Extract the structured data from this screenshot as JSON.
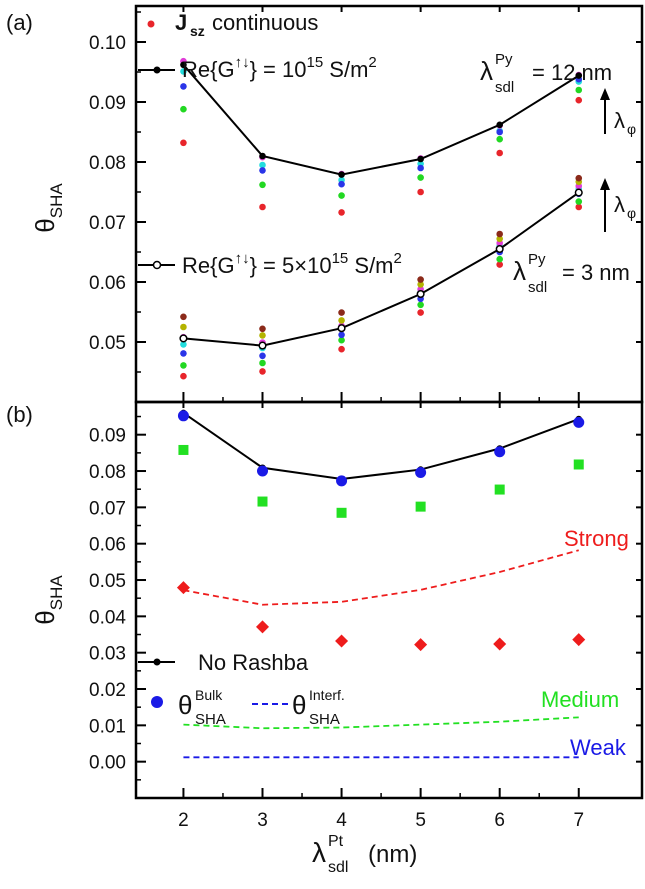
{
  "chart_data": [
    {
      "panel_label": "(a)",
      "type": "scatter",
      "ylabel": {
        "main": "θ",
        "sub": "SHA"
      },
      "xlim": [
        1.4,
        7.8
      ],
      "ylim": [
        0.04,
        0.106
      ],
      "yticks": [
        {
          "v": 0.05,
          "label": "0.05"
        },
        {
          "v": 0.06,
          "label": "0.06"
        },
        {
          "v": 0.07,
          "label": "0.07"
        },
        {
          "v": 0.08,
          "label": "0.08"
        },
        {
          "v": 0.09,
          "label": "0.09"
        },
        {
          "v": 0.1,
          "label": "0.10"
        }
      ],
      "x": [
        2,
        3,
        4,
        5,
        6,
        7
      ],
      "lines": [
        {
          "values": [
            0.0962,
            0.081,
            0.0779,
            0.0805,
            0.0862,
            0.0944
          ],
          "marker": "filled"
        },
        {
          "values": [
            0.0506,
            0.0494,
            0.0523,
            0.058,
            0.0655,
            0.0749
          ],
          "marker": "open"
        }
      ],
      "dot_groups": [
        {
          "color": "#e8252b",
          "values": [
            0.0832,
            0.0725,
            0.0716,
            0.075,
            0.0815,
            0.0903
          ]
        },
        {
          "color": "#22d822",
          "values": [
            0.0888,
            0.0762,
            0.0744,
            0.0774,
            0.0838,
            0.092
          ]
        },
        {
          "color": "#22dddd",
          "values": [
            0.0951,
            0.0795,
            0.077,
            0.0797,
            0.0852,
            0.0934
          ]
        },
        {
          "color": "#2a35e8",
          "values": [
            0.0926,
            0.0786,
            0.0763,
            0.079,
            0.085,
            0.0938
          ]
        },
        {
          "color": "#e03cd8",
          "values": [
            0.0968,
            0.0808,
            0.078,
            0.0806,
            0.0861,
            0.0945
          ]
        },
        {
          "color": "#e8252b",
          "values": [
            0.0443,
            0.0451,
            0.0488,
            0.0549,
            0.0629,
            0.0725
          ]
        },
        {
          "color": "#22d822",
          "values": [
            0.0461,
            0.0465,
            0.0503,
            0.0562,
            0.0638,
            0.0734
          ]
        },
        {
          "color": "#22dddd",
          "values": [
            0.0496,
            0.049,
            0.0522,
            0.0583,
            0.066,
            0.0755
          ]
        },
        {
          "color": "#2a35e8",
          "values": [
            0.0481,
            0.0477,
            0.0512,
            0.0572,
            0.065,
            0.0747
          ]
        },
        {
          "color": "#e03cd8",
          "values": [
            0.0508,
            0.0499,
            0.0527,
            0.0588,
            0.0665,
            0.076
          ]
        },
        {
          "color": "#b3b300",
          "values": [
            0.0525,
            0.0511,
            0.0536,
            0.0596,
            0.0672,
            0.0767
          ]
        },
        {
          "color": "#8b2a1a",
          "values": [
            0.0542,
            0.0522,
            0.0549,
            0.0604,
            0.068,
            0.0773
          ]
        }
      ],
      "annotations": {
        "legend_dots_text": "continuous",
        "legend_dots_J": "J",
        "legend_dots_J_sub": "sz",
        "legend_line1_text": "Re{G",
        "legend_line1_sup": "↑↓",
        "legend_line1_tail": "} = 10",
        "legend_line1_exp": "15",
        "legend_line1_unit": "S/m",
        "legend_line1_unit_exp": "2",
        "legend_line2_text": "Re{G",
        "legend_line2_sup": "↑↓",
        "legend_line2_tail": "} = 5×10",
        "legend_line2_exp": "15",
        "legend_line2_unit": "S/m",
        "legend_line2_unit_exp": "2",
        "lambda_py_top_sym": "λ",
        "lambda_py_top_sup": "Py",
        "lambda_py_top_sub": "sdl",
        "lambda_py_top_val": "= 12 nm",
        "lambda_py_bot_sym": "λ",
        "lambda_py_bot_sup": "Py",
        "lambda_py_bot_sub": "sdl",
        "lambda_py_bot_val": "= 3 nm",
        "lambda_phi_sym": "λ",
        "lambda_phi_sub": "φ"
      }
    },
    {
      "panel_label": "(b)",
      "type": "scatter",
      "ylabel": {
        "main": "θ",
        "sub": "SHA"
      },
      "xlim": [
        1.4,
        7.8
      ],
      "ylim": [
        -0.01,
        0.099
      ],
      "yticks": [
        {
          "v": 0.0,
          "label": "0.00"
        },
        {
          "v": 0.01,
          "label": "0.01"
        },
        {
          "v": 0.02,
          "label": "0.02"
        },
        {
          "v": 0.03,
          "label": "0.03"
        },
        {
          "v": 0.04,
          "label": "0.04"
        },
        {
          "v": 0.05,
          "label": "0.05"
        },
        {
          "v": 0.06,
          "label": "0.06"
        },
        {
          "v": 0.07,
          "label": "0.07"
        },
        {
          "v": 0.08,
          "label": "0.08"
        },
        {
          "v": 0.09,
          "label": "0.09"
        }
      ],
      "x": [
        2,
        3,
        4,
        5,
        6,
        7
      ],
      "xticks": [
        2,
        3,
        4,
        5,
        6,
        7
      ],
      "series": [
        {
          "name": "No Rashba",
          "kind": "line",
          "color": "#000000",
          "values": [
            0.096,
            0.0809,
            0.0778,
            0.0804,
            0.0862,
            0.0943
          ]
        },
        {
          "name": "θ_SHA^Bulk No Rashba",
          "kind": "circles",
          "color": "#1a1ae6",
          "values": [
            0.0952,
            0.08,
            0.0773,
            0.0796,
            0.0853,
            0.0934
          ]
        },
        {
          "name": "Bulk Medium",
          "kind": "squares",
          "color": "#22e022",
          "values": [
            0.0858,
            0.0716,
            0.0685,
            0.0702,
            0.0749,
            0.0818
          ]
        },
        {
          "name": "Bulk Strong",
          "kind": "diamonds",
          "color": "#ee1c1c",
          "values": [
            0.0479,
            0.0371,
            0.0332,
            0.0322,
            0.0324,
            0.0336
          ]
        },
        {
          "name": "Interf. Strong",
          "kind": "dashed",
          "color": "#ee1c1c",
          "values": [
            0.0472,
            0.0432,
            0.044,
            0.0473,
            0.0522,
            0.0582
          ]
        },
        {
          "name": "Interf. Medium",
          "kind": "dashed",
          "color": "#22e022",
          "values": [
            0.0102,
            0.0092,
            0.0094,
            0.0102,
            0.011,
            0.0122
          ]
        },
        {
          "name": "Interf. Weak",
          "kind": "dashed",
          "color": "#1a1ae6",
          "values": [
            0.0012,
            0.0012,
            0.0012,
            0.0012,
            0.0012,
            0.0012
          ]
        }
      ],
      "annotations": {
        "strong": "Strong",
        "medium": "Medium",
        "weak": "Weak",
        "legend_line": "No Rashba",
        "legend_bulk_main": "θ",
        "legend_bulk_sup": "Bulk",
        "legend_bulk_sub": "SHA",
        "legend_interf_main": "θ",
        "legend_interf_sup": "Interf.",
        "legend_interf_sub": "SHA"
      },
      "colors": {
        "strong": "#ee1c1c",
        "medium": "#22e022",
        "weak": "#1a1ae6"
      }
    }
  ],
  "xlabel": {
    "main": "λ",
    "sup": "Pt",
    "sub": "sdl",
    "unit": "(nm)"
  }
}
